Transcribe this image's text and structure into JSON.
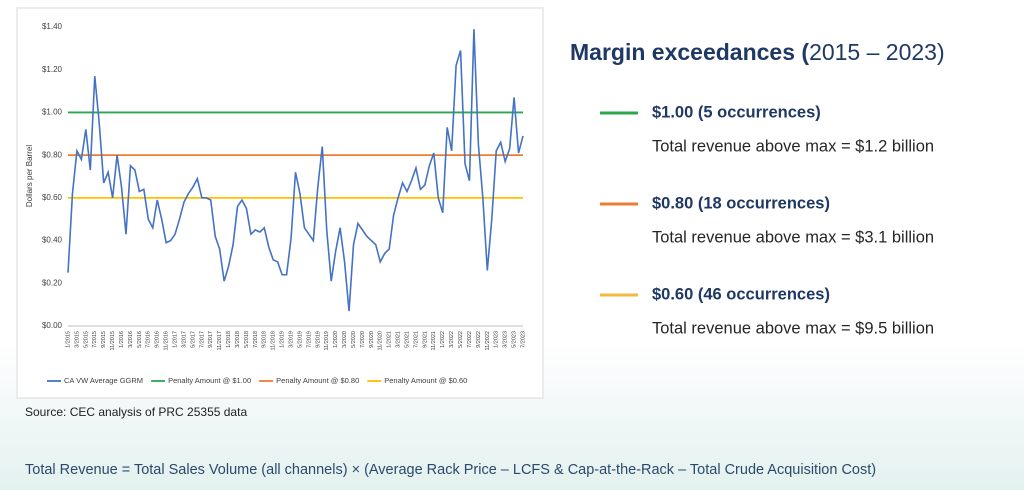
{
  "chart_data": {
    "type": "line",
    "y_label": "Dollars per Barrel",
    "categories": [
      "1/2015",
      null,
      "3/2015",
      null,
      "5/2015",
      null,
      "7/2015",
      null,
      "9/2015",
      null,
      "11/2015",
      null,
      "1/2016",
      null,
      "3/2016",
      null,
      "5/2016",
      null,
      "7/2016",
      null,
      "9/2016",
      null,
      "11/2016",
      null,
      "1/2017",
      null,
      "3/2017",
      null,
      "5/2017",
      null,
      "7/2017",
      null,
      "9/2017",
      null,
      "11/2017",
      null,
      "1/2018",
      null,
      "3/2018",
      null,
      "5/2018",
      null,
      "7/2018",
      null,
      "9/2018",
      null,
      "11/2018",
      null,
      "1/2019",
      null,
      "3/2019",
      null,
      "5/2019",
      null,
      "7/2019",
      null,
      "9/2019",
      null,
      "11/2019",
      null,
      "1/2020",
      null,
      "3/2020",
      null,
      "5/2020",
      null,
      "7/2020",
      null,
      "9/2020",
      null,
      "11/2020",
      null,
      "1/2021",
      null,
      "3/2021",
      null,
      "5/2021",
      null,
      "7/2021",
      null,
      "9/2021",
      null,
      "11/2021",
      null,
      "1/2022",
      null,
      "3/2022",
      null,
      "5/2022",
      null,
      "7/2022",
      null,
      "9/2022",
      null,
      "11/2022",
      null,
      "1/2023",
      null,
      "3/2023",
      null,
      "5/2023",
      null,
      "7/2023"
    ],
    "series": [
      {
        "name": "CA VW Average GGRM",
        "color": "#4472c4",
        "values": [
          0.25,
          0.62,
          0.82,
          0.78,
          0.92,
          0.73,
          1.17,
          0.95,
          0.67,
          0.72,
          0.6,
          0.8,
          0.65,
          0.43,
          0.75,
          0.73,
          0.63,
          0.64,
          0.5,
          0.46,
          0.59,
          0.5,
          0.39,
          0.4,
          0.43,
          0.5,
          0.58,
          0.62,
          0.65,
          0.69,
          0.6,
          0.6,
          0.59,
          0.42,
          0.36,
          0.21,
          0.28,
          0.38,
          0.56,
          0.59,
          0.55,
          0.43,
          0.45,
          0.44,
          0.46,
          0.37,
          0.31,
          0.3,
          0.24,
          0.24,
          0.41,
          0.72,
          0.62,
          0.46,
          0.43,
          0.4,
          0.65,
          0.84,
          0.45,
          0.21,
          0.35,
          0.46,
          0.3,
          0.07,
          0.38,
          0.48,
          0.45,
          0.42,
          0.4,
          0.38,
          0.3,
          0.34,
          0.36,
          0.52,
          0.6,
          0.67,
          0.63,
          0.68,
          0.74,
          0.64,
          0.66,
          0.75,
          0.81,
          0.6,
          0.53,
          0.93,
          0.82,
          1.22,
          1.29,
          0.76,
          0.68,
          1.39,
          0.85,
          0.6,
          0.26,
          0.5,
          0.82,
          0.86,
          0.77,
          0.83,
          1.07,
          0.81,
          0.89
        ]
      }
    ],
    "reference_lines": [
      {
        "name": "Penalty Amount @ $1.00",
        "value": 1.0,
        "color": "#2aa84a"
      },
      {
        "name": "Penalty Amount @ $0.80",
        "value": 0.8,
        "color": "#ed7d31"
      },
      {
        "name": "Penalty Amount @ $0.60",
        "value": 0.6,
        "color": "#ffc000"
      }
    ],
    "ylim": [
      0,
      1.4
    ],
    "yticks": [
      {
        "value": 0,
        "label": "$0.00"
      },
      {
        "value": 0.2,
        "label": "$0.20"
      },
      {
        "value": 0.4,
        "label": "$0.40"
      },
      {
        "value": 0.6,
        "label": "$0.60"
      },
      {
        "value": 0.8,
        "label": "$0.80"
      },
      {
        "value": 1.0,
        "label": "$1.00"
      },
      {
        "value": 1.2,
        "label": "$1.20"
      },
      {
        "value": 1.4,
        "label": "$1.40"
      }
    ],
    "legend": "bottom"
  },
  "panel": {
    "title_bold": "Margin exceedances (",
    "title_rest": "2015 – 2023)",
    "items": [
      {
        "label": "$1.00 (5 occurrences)",
        "text": "Total revenue above max = $1.2 billion",
        "color": "#2aa84a"
      },
      {
        "label": "$0.80 (18 occurrences)",
        "text": "Total revenue above max = $3.1 billion",
        "color": "#ed7d31"
      },
      {
        "label": "$0.60 (46 occurrences)",
        "text": "Total revenue above max = $9.5 billion",
        "color": "#f4b942"
      }
    ]
  },
  "source": "Source: CEC analysis of PRC 25355 data",
  "footer": "Total Revenue = Total Sales Volume (all channels) × (Average Rack Price – LCFS & Cap-at-the-Rack – Total Crude Acquisition Cost)"
}
